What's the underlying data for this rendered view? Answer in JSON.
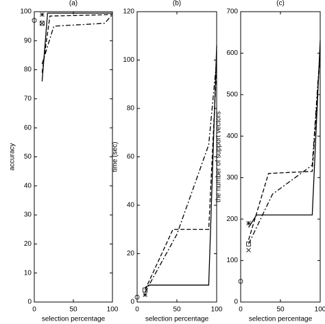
{
  "chart_data": [
    {
      "type": "line",
      "title": "(a)",
      "xlabel": "selection percentage",
      "ylabel": "accuracy",
      "xlim": [
        0,
        100
      ],
      "xticks": [
        0,
        50,
        100
      ],
      "ylim": [
        0,
        100
      ],
      "yticks": [
        0,
        10,
        20,
        30,
        40,
        50,
        60,
        70,
        80,
        90,
        100
      ],
      "series": [
        {
          "color": "#000000",
          "dash": "solid",
          "x": [
            10,
            17,
            100
          ],
          "values": [
            76,
            99.5,
            99.5
          ]
        },
        {
          "color": "#000000",
          "dash": "dashed",
          "x": [
            10,
            20,
            100
          ],
          "values": [
            79,
            98.5,
            99
          ]
        },
        {
          "color": "#000000",
          "dash": "dashdot",
          "x": [
            10,
            25,
            90,
            100
          ],
          "values": [
            82,
            95,
            96,
            99
          ]
        }
      ],
      "markers": [
        {
          "shape": "circle",
          "x": 0,
          "y": 97
        },
        {
          "shape": "asterisk",
          "x": 10,
          "y": 99
        },
        {
          "shape": "boxx",
          "x": 10,
          "y": 96
        }
      ]
    },
    {
      "type": "line",
      "title": "(b)",
      "xlabel": "selection percentage",
      "ylabel": "time (sec)",
      "xlim": [
        0,
        100
      ],
      "xticks": [
        0,
        50,
        100
      ],
      "ylim": [
        0,
        120
      ],
      "yticks": [
        0,
        20,
        40,
        60,
        80,
        100,
        120
      ],
      "series": [
        {
          "color": "#000000",
          "dash": "solid",
          "x": [
            10,
            15,
            90,
            100
          ],
          "values": [
            6,
            7,
            7,
            106
          ]
        },
        {
          "color": "#000000",
          "dash": "dashed",
          "x": [
            10,
            45,
            90,
            100
          ],
          "values": [
            5,
            30,
            30,
            98
          ]
        },
        {
          "color": "#000000",
          "dash": "dashdot",
          "x": [
            10,
            50,
            90,
            100
          ],
          "values": [
            4,
            28,
            65,
            100
          ]
        }
      ],
      "markers": [
        {
          "shape": "circle",
          "x": 0,
          "y": 2
        },
        {
          "shape": "box",
          "x": 10,
          "y": 5
        },
        {
          "shape": "asterisk",
          "x": 10,
          "y": 3
        }
      ]
    },
    {
      "type": "line",
      "title": "(c)",
      "xlabel": "selection percentage",
      "ylabel": "the number of support vectors",
      "xlim": [
        0,
        100
      ],
      "xticks": [
        0,
        50,
        100
      ],
      "ylim": [
        0,
        700
      ],
      "yticks": [
        0,
        100,
        200,
        300,
        400,
        500,
        600,
        700
      ],
      "series": [
        {
          "color": "#000000",
          "dash": "solid",
          "x": [
            10,
            20,
            90,
            100
          ],
          "values": [
            180,
            210,
            210,
            630
          ]
        },
        {
          "color": "#000000",
          "dash": "dashed",
          "x": [
            10,
            35,
            90,
            100
          ],
          "values": [
            150,
            310,
            315,
            600
          ]
        },
        {
          "color": "#000000",
          "dash": "dashdot",
          "x": [
            10,
            40,
            90,
            100
          ],
          "values": [
            140,
            260,
            330,
            610
          ]
        }
      ],
      "markers": [
        {
          "shape": "circle",
          "x": 0,
          "y": 50
        },
        {
          "shape": "asterisk",
          "x": 10,
          "y": 190
        },
        {
          "shape": "box",
          "x": 10,
          "y": 140
        },
        {
          "shape": "x",
          "x": 10,
          "y": 125
        }
      ]
    }
  ]
}
